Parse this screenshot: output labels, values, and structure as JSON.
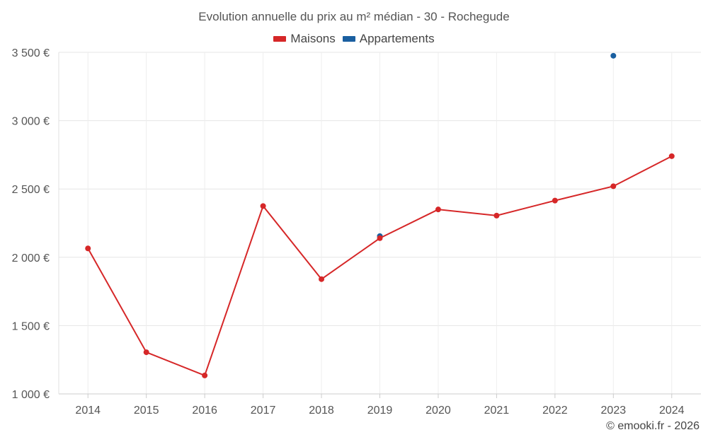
{
  "chart_data": {
    "type": "line",
    "title": "Evolution annuelle du prix au m² médian - 30 - Rochegude",
    "x": [
      "2014",
      "2015",
      "2016",
      "2017",
      "2018",
      "2019",
      "2020",
      "2021",
      "2022",
      "2023",
      "2024"
    ],
    "series": [
      {
        "name": "Maisons",
        "color": "#d62728",
        "values": [
          2065,
          1305,
          1135,
          2375,
          1840,
          2140,
          2350,
          2305,
          2415,
          2520,
          2740
        ]
      },
      {
        "name": "Appartements",
        "color": "#1a5fa0",
        "values": [
          null,
          null,
          null,
          null,
          null,
          2155,
          null,
          null,
          null,
          3475,
          null
        ]
      }
    ],
    "ylim": [
      1000,
      3500
    ],
    "yticks": [
      1000,
      1500,
      2000,
      2500,
      3000,
      3500
    ],
    "ytick_labels": [
      "1 000 €",
      "1 500 €",
      "2 000 €",
      "2 500 €",
      "3 000 €",
      "3 500 €"
    ],
    "xlabel": "",
    "ylabel": "",
    "grid": true,
    "legend_position": "top-center"
  },
  "credit": "© emooki.fr - 2026"
}
